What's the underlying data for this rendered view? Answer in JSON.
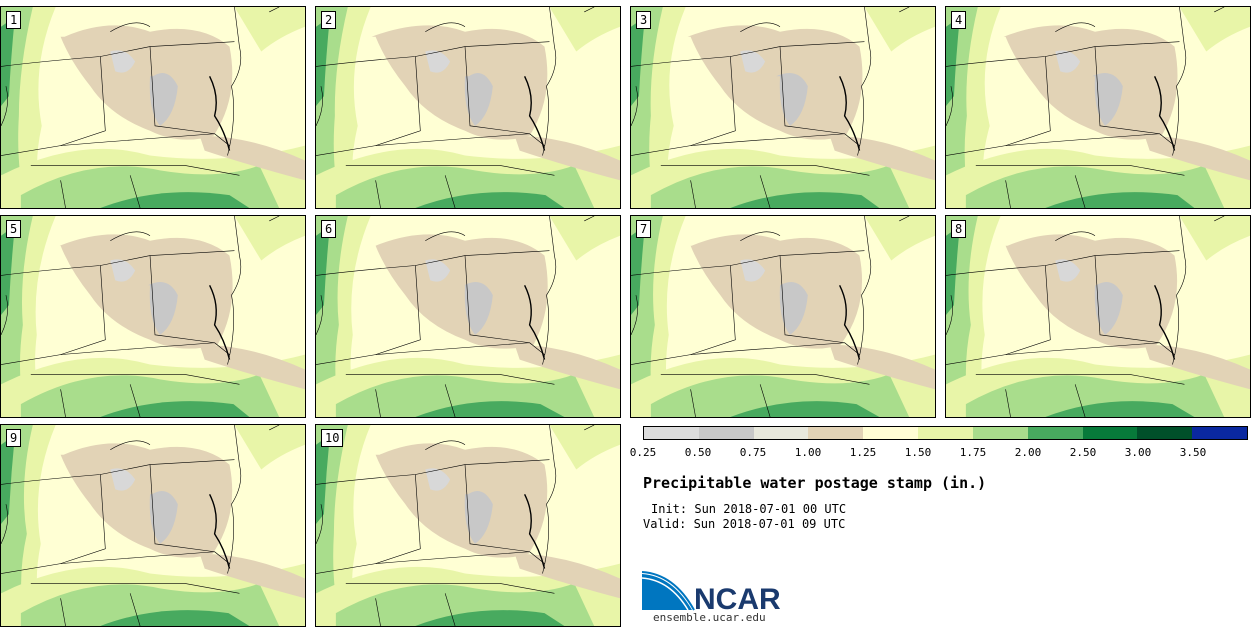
{
  "members": [
    "1",
    "2",
    "3",
    "4",
    "5",
    "6",
    "7",
    "8",
    "9",
    "10"
  ],
  "legend": {
    "colors": [
      "#dcdcdc",
      "#c8c8c8",
      "#e8e8dc",
      "#e2d3b6",
      "#fffdd4",
      "#e8f5a8",
      "#a9dd8c",
      "#48aa5f",
      "#077a3a",
      "#00502a",
      "#0a28a0"
    ],
    "labels": [
      "0.25",
      "0.50",
      "0.75",
      "1.00",
      "1.25",
      "1.50",
      "1.75",
      "2.00",
      "2.50",
      "3.00",
      "3.50"
    ]
  },
  "title": "Precipitable water postage stamp (in.)",
  "init_line": "Init: Sun 2018-07-01 00 UTC",
  "valid_line": "Valid: Sun 2018-07-01 09 UTC",
  "logo": {
    "text": "NCAR",
    "url": "ensemble.ucar.edu",
    "colors": {
      "blue": "#0076c0",
      "navy": "#1a3a6e"
    }
  },
  "map_colors": {
    "background": "#ffffd4",
    "light_green": "#e8f5a8",
    "mid_green": "#a9dd8c",
    "dark_green": "#48aa5f",
    "tan": "#e2d3b6",
    "gray": "#c8c8c8",
    "border": "#000000"
  }
}
